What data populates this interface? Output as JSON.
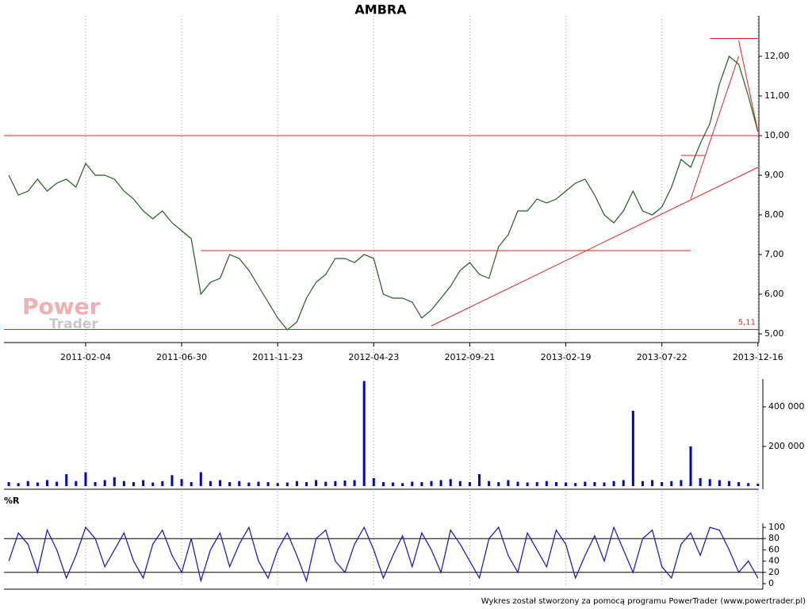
{
  "chart_data": [
    {
      "type": "line",
      "title": "AMBRA",
      "color": "#1f5f1f",
      "grid": true,
      "values": [
        9.0,
        8.5,
        8.6,
        8.9,
        8.6,
        8.8,
        8.9,
        8.7,
        9.3,
        9.0,
        9.0,
        8.9,
        8.6,
        8.4,
        8.1,
        7.9,
        8.1,
        7.8,
        7.6,
        7.4,
        6.0,
        6.3,
        6.4,
        7.0,
        6.9,
        6.6,
        6.2,
        5.8,
        5.4,
        5.1,
        5.3,
        5.9,
        6.3,
        6.5,
        6.9,
        6.9,
        6.8,
        7.0,
        6.9,
        6.0,
        5.9,
        5.9,
        5.8,
        5.4,
        5.6,
        5.9,
        6.2,
        6.6,
        6.8,
        6.5,
        6.4,
        7.2,
        7.5,
        8.1,
        8.1,
        8.4,
        8.3,
        8.4,
        8.6,
        8.8,
        8.9,
        8.5,
        8.0,
        7.8,
        8.1,
        8.6,
        8.1,
        8.0,
        8.2,
        8.7,
        9.4,
        9.2,
        9.8,
        10.3,
        11.3,
        12.0,
        11.8,
        11.0,
        10.1
      ],
      "xlim": [
        -0.5,
        78.1
      ],
      "xticks": [
        {
          "value": 8,
          "label": "2011-02-04"
        },
        {
          "value": 18,
          "label": "2011-06-30"
        },
        {
          "value": 28,
          "label": "2011-11-23"
        },
        {
          "value": 38,
          "label": "2012-04-23"
        },
        {
          "value": 48,
          "label": "2012-09-21"
        },
        {
          "value": 58,
          "label": "2013-02-19"
        },
        {
          "value": 68,
          "label": "2013-07-22"
        },
        {
          "value": 78,
          "label": "2013-12-16"
        }
      ],
      "ylim": [
        4.78,
        13.02
      ],
      "yticks": [
        {
          "value": 5,
          "label": "5,00"
        },
        {
          "value": 6,
          "label": "6,00"
        },
        {
          "value": 7,
          "label": "7,00"
        },
        {
          "value": 8,
          "label": "8,00"
        },
        {
          "value": 9,
          "label": "9,00"
        },
        {
          "value": 10,
          "label": "10,00"
        },
        {
          "value": 11,
          "label": "11,00"
        },
        {
          "value": 12,
          "label": "12,00"
        }
      ],
      "line_color": "#e02020",
      "lines": [
        {
          "x": [
            -0.5,
            78.1
          ],
          "y": [
            10.0,
            10.0
          ]
        },
        {
          "x": [
            20,
            71
          ],
          "y": [
            7.1,
            7.1
          ]
        },
        {
          "x": [
            -0.5,
            78.1
          ],
          "y": [
            5.11,
            5.11
          ],
          "label": "5,11"
        },
        {
          "x": [
            73,
            78
          ],
          "y": [
            12.45,
            12.45
          ]
        },
        {
          "x": [
            70,
            72.5
          ],
          "y": [
            9.5,
            9.5
          ]
        },
        {
          "x": [
            44,
            78
          ],
          "y": [
            5.2,
            9.2
          ]
        },
        {
          "x": [
            71,
            76
          ],
          "y": [
            8.4,
            12.0
          ]
        },
        {
          "x": [
            76,
            78
          ],
          "y": [
            12.4,
            10.1
          ]
        }
      ],
      "watermark": [
        "Power",
        "Trader"
      ]
    },
    {
      "type": "bar",
      "color": "#0000cc",
      "values": [
        20000,
        15000,
        25000,
        18000,
        30000,
        22000,
        60000,
        25000,
        70000,
        20000,
        30000,
        45000,
        25000,
        20000,
        30000,
        18000,
        25000,
        55000,
        35000,
        20000,
        70000,
        25000,
        30000,
        20000,
        25000,
        18000,
        22000,
        20000,
        15000,
        18000,
        25000,
        20000,
        30000,
        22000,
        25000,
        28000,
        30000,
        530000,
        40000,
        20000,
        18000,
        15000,
        22000,
        20000,
        25000,
        30000,
        35000,
        25000,
        20000,
        60000,
        25000,
        20000,
        30000,
        22000,
        18000,
        20000,
        25000,
        20000,
        18000,
        15000,
        22000,
        20000,
        18000,
        25000,
        30000,
        380000,
        25000,
        30000,
        20000,
        25000,
        30000,
        200000,
        40000,
        35000,
        30000,
        25000,
        20000,
        15000,
        12000
      ],
      "ylim": [
        0,
        540000
      ],
      "yticks": [
        {
          "value": 200000,
          "label": "200 000"
        },
        {
          "value": 400000,
          "label": "400 000"
        }
      ]
    },
    {
      "type": "line",
      "ylabel": "%R",
      "color": "#1010cc",
      "values": [
        40,
        90,
        70,
        20,
        95,
        60,
        10,
        50,
        100,
        80,
        30,
        60,
        90,
        40,
        10,
        70,
        95,
        50,
        20,
        80,
        5,
        60,
        90,
        30,
        70,
        100,
        40,
        10,
        60,
        90,
        50,
        5,
        80,
        95,
        40,
        20,
        70,
        100,
        60,
        10,
        50,
        85,
        30,
        90,
        60,
        20,
        95,
        70,
        40,
        10,
        80,
        100,
        50,
        20,
        90,
        60,
        30,
        95,
        70,
        10,
        50,
        85,
        40,
        100,
        60,
        20,
        80,
        95,
        30,
        10,
        70,
        90,
        50,
        100,
        95,
        60,
        20,
        40,
        10
      ],
      "ylim": [
        0,
        100
      ],
      "yticks": [
        0,
        20,
        40,
        60,
        80,
        100
      ],
      "levels": [
        20,
        80
      ]
    }
  ],
  "footer": "Wykres został stworzony za pomocą programu PowerTrader (www.powertrader.pl)"
}
